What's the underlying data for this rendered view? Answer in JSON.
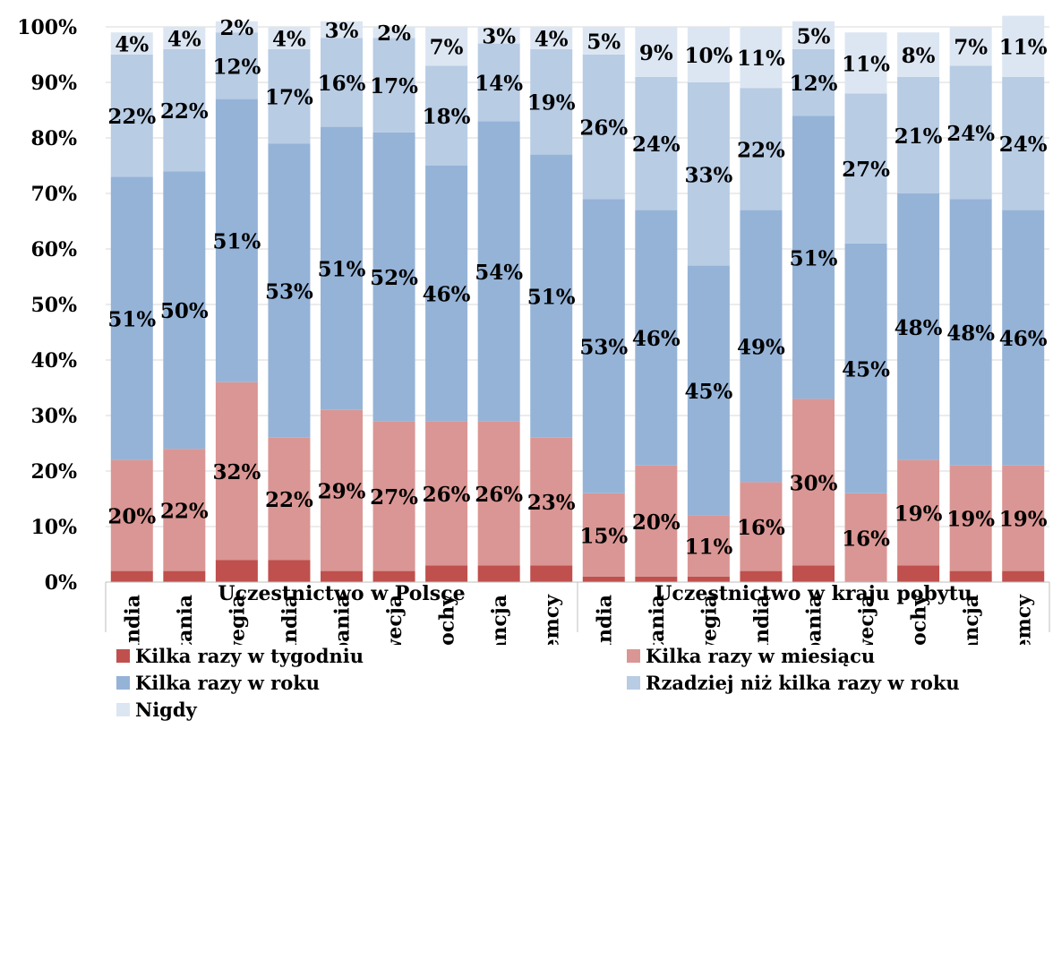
{
  "chart_data": {
    "type": "bar",
    "stacked": true,
    "ylim": [
      0,
      100
    ],
    "yticks": [
      "0%",
      "10%",
      "20%",
      "30%",
      "40%",
      "50%",
      "60%",
      "70%",
      "80%",
      "90%",
      "100%"
    ],
    "grid": true,
    "legend_position": "bottom",
    "groups": [
      {
        "label": "Uczestnictwo w Polsce",
        "categories": [
          "Irlandia",
          "Wielka Brytania",
          "Norwegia",
          "Holandia",
          "Hiszpania",
          "Szwecja",
          "Włochy",
          "Francja",
          "Niemcy"
        ]
      },
      {
        "label": "Uczestnictwo w kraju pobytu",
        "categories": [
          "Irlandia",
          "Wielka Brytania",
          "Norwegia",
          "Holandia",
          "Hiszpania",
          "Szwecja",
          "Włochy",
          "Francja",
          "Niemcy"
        ]
      }
    ],
    "series": [
      {
        "name": "Kilka razy w tygodniu",
        "color": "#c0504d",
        "values": [
          2,
          2,
          4,
          4,
          2,
          2,
          3,
          3,
          3,
          1,
          1,
          1,
          2,
          3,
          0,
          3,
          2,
          2
        ],
        "labels": []
      },
      {
        "name": "Kilka razy w miesiącu",
        "color": "#da9694",
        "values": [
          20,
          22,
          32,
          22,
          29,
          27,
          26,
          26,
          23,
          15,
          20,
          11,
          16,
          30,
          16,
          19,
          19,
          19
        ],
        "labels": [
          "20%",
          "22%",
          "32%",
          "22%",
          "29%",
          "27%",
          "26%",
          "26%",
          "23%",
          "15%",
          "20%",
          "11%",
          "16%",
          "30%",
          "16%",
          "19%",
          "19%",
          "19%"
        ]
      },
      {
        "name": "Kilka razy w roku",
        "color": "#95b3d7",
        "values": [
          51,
          50,
          51,
          53,
          51,
          52,
          46,
          54,
          51,
          53,
          46,
          45,
          49,
          51,
          45,
          48,
          48,
          46
        ],
        "labels": [
          "51%",
          "50%",
          "51%",
          "53%",
          "51%",
          "52%",
          "46%",
          "54%",
          "51%",
          "53%",
          "46%",
          "45%",
          "49%",
          "51%",
          "45%",
          "48%",
          "48%",
          "46%"
        ]
      },
      {
        "name": "Rzadziej niż kilka razy w roku",
        "color": "#b8cce4",
        "values": [
          22,
          22,
          12,
          17,
          16,
          17,
          18,
          14,
          19,
          26,
          24,
          33,
          22,
          12,
          27,
          21,
          24,
          24
        ],
        "labels": [
          "22%",
          "22%",
          "12%",
          "17%",
          "16%",
          "17%",
          "18%",
          "14%",
          "19%",
          "26%",
          "24%",
          "33%",
          "22%",
          "12%",
          "27%",
          "21%",
          "24%",
          "24%"
        ]
      },
      {
        "name": "Nigdy",
        "color": "#dce6f2",
        "values": [
          4,
          4,
          2,
          4,
          3,
          2,
          7,
          3,
          4,
          5,
          9,
          10,
          11,
          5,
          11,
          8,
          7,
          11
        ],
        "labels": [
          "4%",
          "4%",
          "2%",
          "4%",
          "3%",
          "2%",
          "7%",
          "3%",
          "4%",
          "5%",
          "9%",
          "10%",
          "11%",
          "5%",
          "11%",
          "8%",
          "7%",
          "11%"
        ]
      }
    ]
  },
  "legend": {
    "items": [
      {
        "label": "Kilka razy w tygodniu",
        "color": "#c0504d"
      },
      {
        "label": "Kilka razy w miesiącu",
        "color": "#da9694"
      },
      {
        "label": "Kilka razy w roku",
        "color": "#95b3d7"
      },
      {
        "label": "Rzadziej niż kilka razy w roku",
        "color": "#b8cce4"
      },
      {
        "label": "Nigdy",
        "color": "#dce6f2"
      }
    ]
  }
}
